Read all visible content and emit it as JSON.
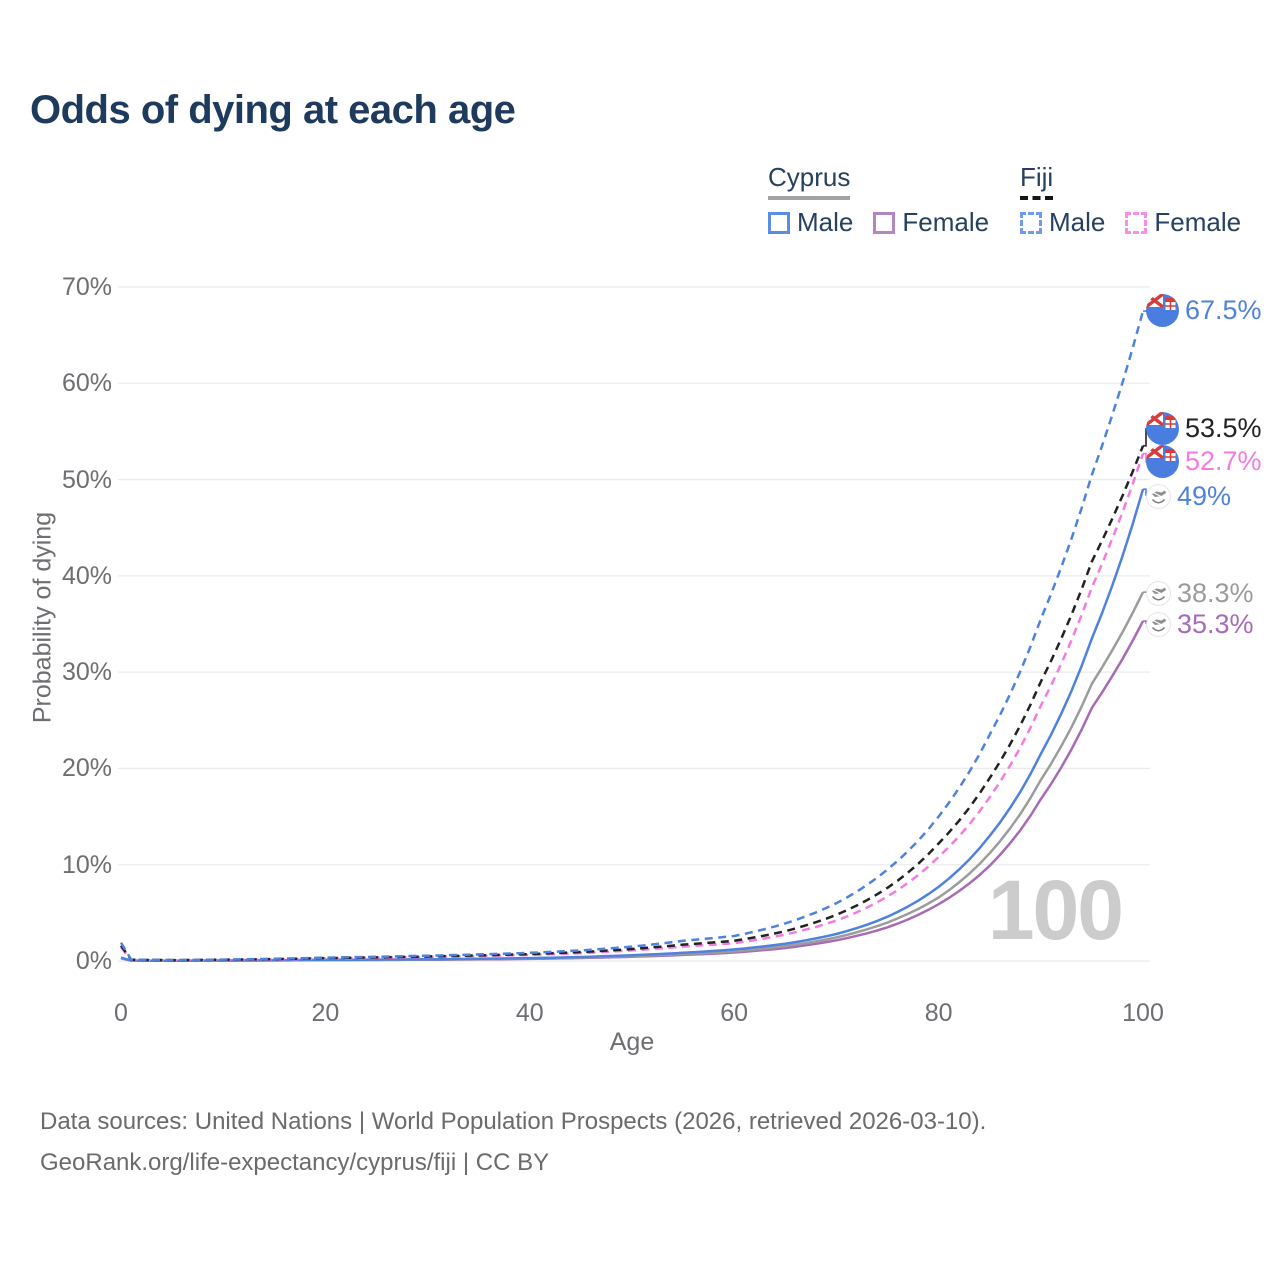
{
  "title": "Odds of dying at each age",
  "legend": {
    "groups": [
      {
        "label": "Cyprus",
        "line_style": "solid",
        "underline_color": "#a3a3a3",
        "items": [
          {
            "label": "Male",
            "color": "#5b8ce8"
          },
          {
            "label": "Female",
            "color": "#b287bf"
          }
        ]
      },
      {
        "label": "Fiji",
        "line_style": "dashed",
        "underline_color": "#161616",
        "items": [
          {
            "label": "Male",
            "color": "#6f9af0"
          },
          {
            "label": "Female",
            "color": "#f78fe8"
          }
        ]
      }
    ]
  },
  "source_line1": "Data sources: United Nations | World Population Prospects (2026, retrieved 2026-03-10).",
  "source_line2": "GeoRank.org/life-expectancy/cyprus/fiji | CC BY",
  "chart_data": {
    "type": "line",
    "title": "Odds of dying at each age",
    "xlabel": "Age",
    "ylabel": "Probability of dying",
    "xlim": [
      0,
      100
    ],
    "ylim": [
      0,
      70
    ],
    "xticks": [
      0,
      20,
      40,
      60,
      80,
      100
    ],
    "yticks": [
      0,
      10,
      20,
      30,
      40,
      50,
      60,
      70
    ],
    "ytick_suffix": "%",
    "grid": "horizontal",
    "watermark": "100",
    "legend_position": "top-right",
    "series": [
      {
        "id": "fiji-male",
        "name": "Fiji Male",
        "country": "Fiji",
        "sex": "Male",
        "color": "#4f82dd",
        "dash": true,
        "flag": "fiji",
        "end_value": 67.5,
        "end_label": "67.5%",
        "points": [
          [
            0,
            1.9
          ],
          [
            1,
            0.15
          ],
          [
            5,
            0.1
          ],
          [
            10,
            0.15
          ],
          [
            20,
            0.35
          ],
          [
            30,
            0.55
          ],
          [
            40,
            0.85
          ],
          [
            45,
            1.1
          ],
          [
            50,
            1.5
          ],
          [
            55,
            2.1
          ],
          [
            60,
            2.6
          ],
          [
            65,
            3.9
          ],
          [
            70,
            6.0
          ],
          [
            75,
            9.5
          ],
          [
            80,
            15.0
          ],
          [
            85,
            23.5
          ],
          [
            90,
            35.5
          ],
          [
            95,
            50.5
          ],
          [
            100,
            67.5
          ]
        ]
      },
      {
        "id": "fiji-both",
        "name": "Fiji",
        "country": "Fiji",
        "sex": "Both",
        "color": "#222222",
        "dash": true,
        "flag": "fiji",
        "end_value": 53.5,
        "end_label": "53.5%",
        "points": [
          [
            0,
            1.6
          ],
          [
            1,
            0.13
          ],
          [
            5,
            0.09
          ],
          [
            10,
            0.13
          ],
          [
            20,
            0.3
          ],
          [
            30,
            0.47
          ],
          [
            40,
            0.72
          ],
          [
            45,
            0.93
          ],
          [
            50,
            1.25
          ],
          [
            55,
            1.7
          ],
          [
            60,
            2.1
          ],
          [
            65,
            3.1
          ],
          [
            70,
            4.8
          ],
          [
            75,
            7.6
          ],
          [
            80,
            12.2
          ],
          [
            85,
            19.0
          ],
          [
            90,
            29.0
          ],
          [
            95,
            41.5
          ],
          [
            100,
            53.5
          ]
        ]
      },
      {
        "id": "fiji-female",
        "name": "Fiji Female",
        "country": "Fiji",
        "sex": "Female",
        "color": "#f67ae0",
        "dash": true,
        "flag": "fiji",
        "end_value": 52.7,
        "end_label": "52.7%",
        "points": [
          [
            0,
            1.4
          ],
          [
            1,
            0.11
          ],
          [
            5,
            0.08
          ],
          [
            10,
            0.11
          ],
          [
            20,
            0.26
          ],
          [
            30,
            0.42
          ],
          [
            40,
            0.63
          ],
          [
            45,
            0.82
          ],
          [
            50,
            1.1
          ],
          [
            55,
            1.5
          ],
          [
            60,
            1.85
          ],
          [
            65,
            2.75
          ],
          [
            70,
            4.2
          ],
          [
            75,
            6.7
          ],
          [
            80,
            10.8
          ],
          [
            85,
            17.0
          ],
          [
            90,
            26.5
          ],
          [
            95,
            38.8
          ],
          [
            100,
            52.7
          ]
        ]
      },
      {
        "id": "cyprus-male",
        "name": "Cyprus Male",
        "country": "Cyprus",
        "sex": "Male",
        "color": "#4f82dd",
        "dash": false,
        "flag": "cyprus",
        "end_value": 49,
        "end_label": "49%",
        "points": [
          [
            0,
            0.35
          ],
          [
            1,
            0.04
          ],
          [
            5,
            0.03
          ],
          [
            10,
            0.05
          ],
          [
            20,
            0.12
          ],
          [
            30,
            0.18
          ],
          [
            40,
            0.3
          ],
          [
            45,
            0.42
          ],
          [
            50,
            0.6
          ],
          [
            55,
            0.85
          ],
          [
            60,
            1.2
          ],
          [
            65,
            1.8
          ],
          [
            70,
            2.8
          ],
          [
            75,
            4.6
          ],
          [
            80,
            7.7
          ],
          [
            85,
            13.0
          ],
          [
            90,
            21.5
          ],
          [
            95,
            33.5
          ],
          [
            100,
            49.0
          ]
        ]
      },
      {
        "id": "cyprus-both",
        "name": "Cyprus",
        "country": "Cyprus",
        "sex": "Both",
        "color": "#9c9c9c",
        "dash": false,
        "flag": "cyprus",
        "end_value": 38.3,
        "end_label": "38.3%",
        "points": [
          [
            0,
            0.3
          ],
          [
            1,
            0.035
          ],
          [
            5,
            0.028
          ],
          [
            10,
            0.045
          ],
          [
            20,
            0.1
          ],
          [
            30,
            0.15
          ],
          [
            40,
            0.25
          ],
          [
            45,
            0.35
          ],
          [
            50,
            0.5
          ],
          [
            55,
            0.72
          ],
          [
            60,
            1.0
          ],
          [
            65,
            1.55
          ],
          [
            70,
            2.45
          ],
          [
            75,
            4.0
          ],
          [
            80,
            6.6
          ],
          [
            85,
            11.2
          ],
          [
            90,
            18.8
          ],
          [
            95,
            28.8
          ],
          [
            100,
            38.3
          ]
        ]
      },
      {
        "id": "cyprus-female",
        "name": "Cyprus Female",
        "country": "Cyprus",
        "sex": "Female",
        "color": "#a76bb5",
        "dash": false,
        "flag": "cyprus",
        "end_value": 35.3,
        "end_label": "35.3%",
        "points": [
          [
            0,
            0.28
          ],
          [
            1,
            0.03
          ],
          [
            5,
            0.025
          ],
          [
            10,
            0.04
          ],
          [
            20,
            0.09
          ],
          [
            30,
            0.13
          ],
          [
            40,
            0.22
          ],
          [
            45,
            0.31
          ],
          [
            50,
            0.44
          ],
          [
            55,
            0.63
          ],
          [
            60,
            0.88
          ],
          [
            65,
            1.35
          ],
          [
            70,
            2.15
          ],
          [
            75,
            3.5
          ],
          [
            80,
            5.9
          ],
          [
            85,
            9.9
          ],
          [
            90,
            16.8
          ],
          [
            95,
            26.3
          ],
          [
            100,
            35.3
          ]
        ]
      }
    ]
  }
}
